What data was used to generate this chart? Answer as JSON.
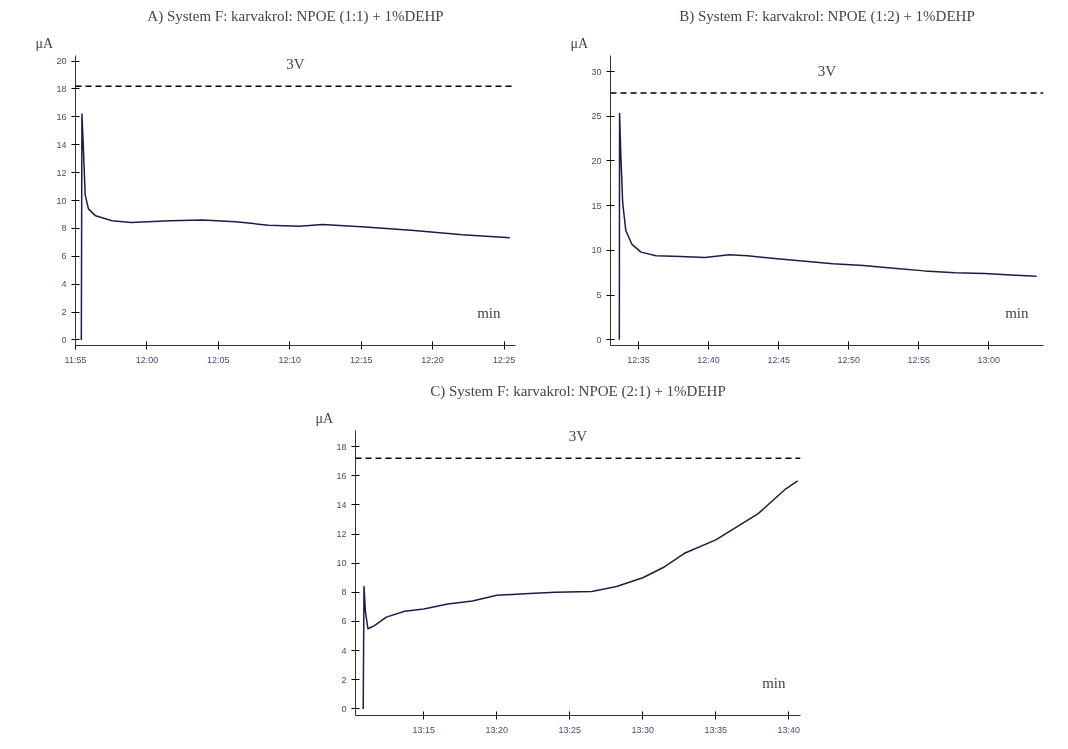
{
  "chart_data": [
    {
      "type": "line",
      "title": "A) System F: karvakrol: NPOE (1:1) + 1%DEHP",
      "xlabel": "min",
      "ylabel": "μA",
      "color": "#1c1c4c",
      "x": [
        11.9235,
        11.9242,
        11.9258,
        11.928,
        11.9318,
        11.9402,
        11.9592,
        11.9817,
        12.0267,
        12.065,
        12.1033,
        12.1417,
        12.1783,
        12.205,
        12.255,
        12.3117,
        12.3683,
        12.4233
      ],
      "values": [
        0,
        16.2,
        13.9,
        10.4,
        9.4,
        8.9,
        8.55,
        8.43,
        8.55,
        8.6,
        8.48,
        8.23,
        8.15,
        8.28,
        8.1,
        7.85,
        7.54,
        7.32
      ],
      "xlim": [
        11.9167,
        12.43
      ],
      "ylim": [
        -0.4,
        20.4
      ],
      "xticks": [
        {
          "value": 11.9167,
          "label": "11:55"
        },
        {
          "value": 12.0,
          "label": "12:00"
        },
        {
          "value": 12.0833,
          "label": "12:05"
        },
        {
          "value": 12.1667,
          "label": "12:10"
        },
        {
          "value": 12.25,
          "label": "12:15"
        },
        {
          "value": 12.3333,
          "label": "12:20"
        },
        {
          "value": 12.4167,
          "label": "12:25"
        }
      ],
      "yticks": [
        0,
        2,
        4,
        6,
        8,
        10,
        12,
        14,
        16,
        18,
        20
      ],
      "ref_lines": [
        {
          "axis": "y",
          "value": 18.2,
          "label": "3V",
          "color": "#000000",
          "line_style": "dashed"
        }
      ]
    },
    {
      "type": "line",
      "title": "B) System F: karvakrol: NPOE (1:2) + 1%DEHP",
      "xlabel": "min",
      "ylabel": "μA",
      "color": "#1c1c4c",
      "x": [
        12.5605,
        12.5608,
        12.5623,
        12.5645,
        12.5682,
        12.5753,
        12.5862,
        12.6043,
        12.6333,
        12.6623,
        12.6913,
        12.713,
        12.742,
        12.7783,
        12.8145,
        12.8507,
        12.8867,
        12.9233,
        12.96,
        12.995,
        13.0317,
        13.0567
      ],
      "values": [
        0,
        25.3,
        20.6,
        15.3,
        12.2,
        10.7,
        9.8,
        9.4,
        9.3,
        9.2,
        9.5,
        9.4,
        9.1,
        8.8,
        8.5,
        8.3,
        8.0,
        7.7,
        7.5,
        7.4,
        7.2,
        7.1
      ],
      "xlim": [
        12.55,
        13.065
      ],
      "ylim": [
        -0.65,
        31.8
      ],
      "xticks": [
        {
          "value": 12.5833,
          "label": "12:35"
        },
        {
          "value": 12.6667,
          "label": "12:40"
        },
        {
          "value": 12.75,
          "label": "12:45"
        },
        {
          "value": 12.8333,
          "label": "12:50"
        },
        {
          "value": 12.9167,
          "label": "12:55"
        },
        {
          "value": 13.0,
          "label": "13:00"
        }
      ],
      "yticks": [
        0,
        5,
        10,
        15,
        20,
        25,
        30
      ],
      "ref_lines": [
        {
          "axis": "y",
          "value": 27.6,
          "label": "3V",
          "color": "#000000",
          "line_style": "dashed"
        }
      ]
    },
    {
      "type": "line",
      "title": "C) System F: karvakrol: NPOE (2:1) + 1%DEHP",
      "xlabel": "min",
      "ylabel": "μA",
      "color": "#1c1c4c",
      "x": [
        13.1808,
        13.1817,
        13.1833,
        13.1862,
        13.1932,
        13.2072,
        13.2282,
        13.25,
        13.2773,
        13.3055,
        13.3333,
        13.365,
        13.4,
        13.4417,
        13.47,
        13.5,
        13.5233,
        13.5483,
        13.5833,
        13.6317,
        13.6633,
        13.6767
      ],
      "values": [
        0,
        8.4,
        6.7,
        5.5,
        5.7,
        6.3,
        6.7,
        6.85,
        7.2,
        7.4,
        7.8,
        7.9,
        8.0,
        8.05,
        8.4,
        9.0,
        9.7,
        10.7,
        11.6,
        13.4,
        15.1,
        15.65
      ],
      "xlim": [
        13.172,
        13.68
      ],
      "ylim": [
        -0.45,
        19.1
      ],
      "xticks": [
        {
          "value": 13.25,
          "label": "13:15"
        },
        {
          "value": 13.3333,
          "label": "13:20"
        },
        {
          "value": 13.4167,
          "label": "13:25"
        },
        {
          "value": 13.5,
          "label": "13:30"
        },
        {
          "value": 13.5833,
          "label": "13:35"
        },
        {
          "value": 13.6667,
          "label": "13:40"
        }
      ],
      "yticks": [
        0,
        2,
        4,
        6,
        8,
        10,
        12,
        14,
        16,
        18
      ],
      "ref_lines": [
        {
          "axis": "y",
          "value": 17.2,
          "label": "3V",
          "color": "#000000",
          "line_style": "dashed"
        }
      ]
    }
  ]
}
